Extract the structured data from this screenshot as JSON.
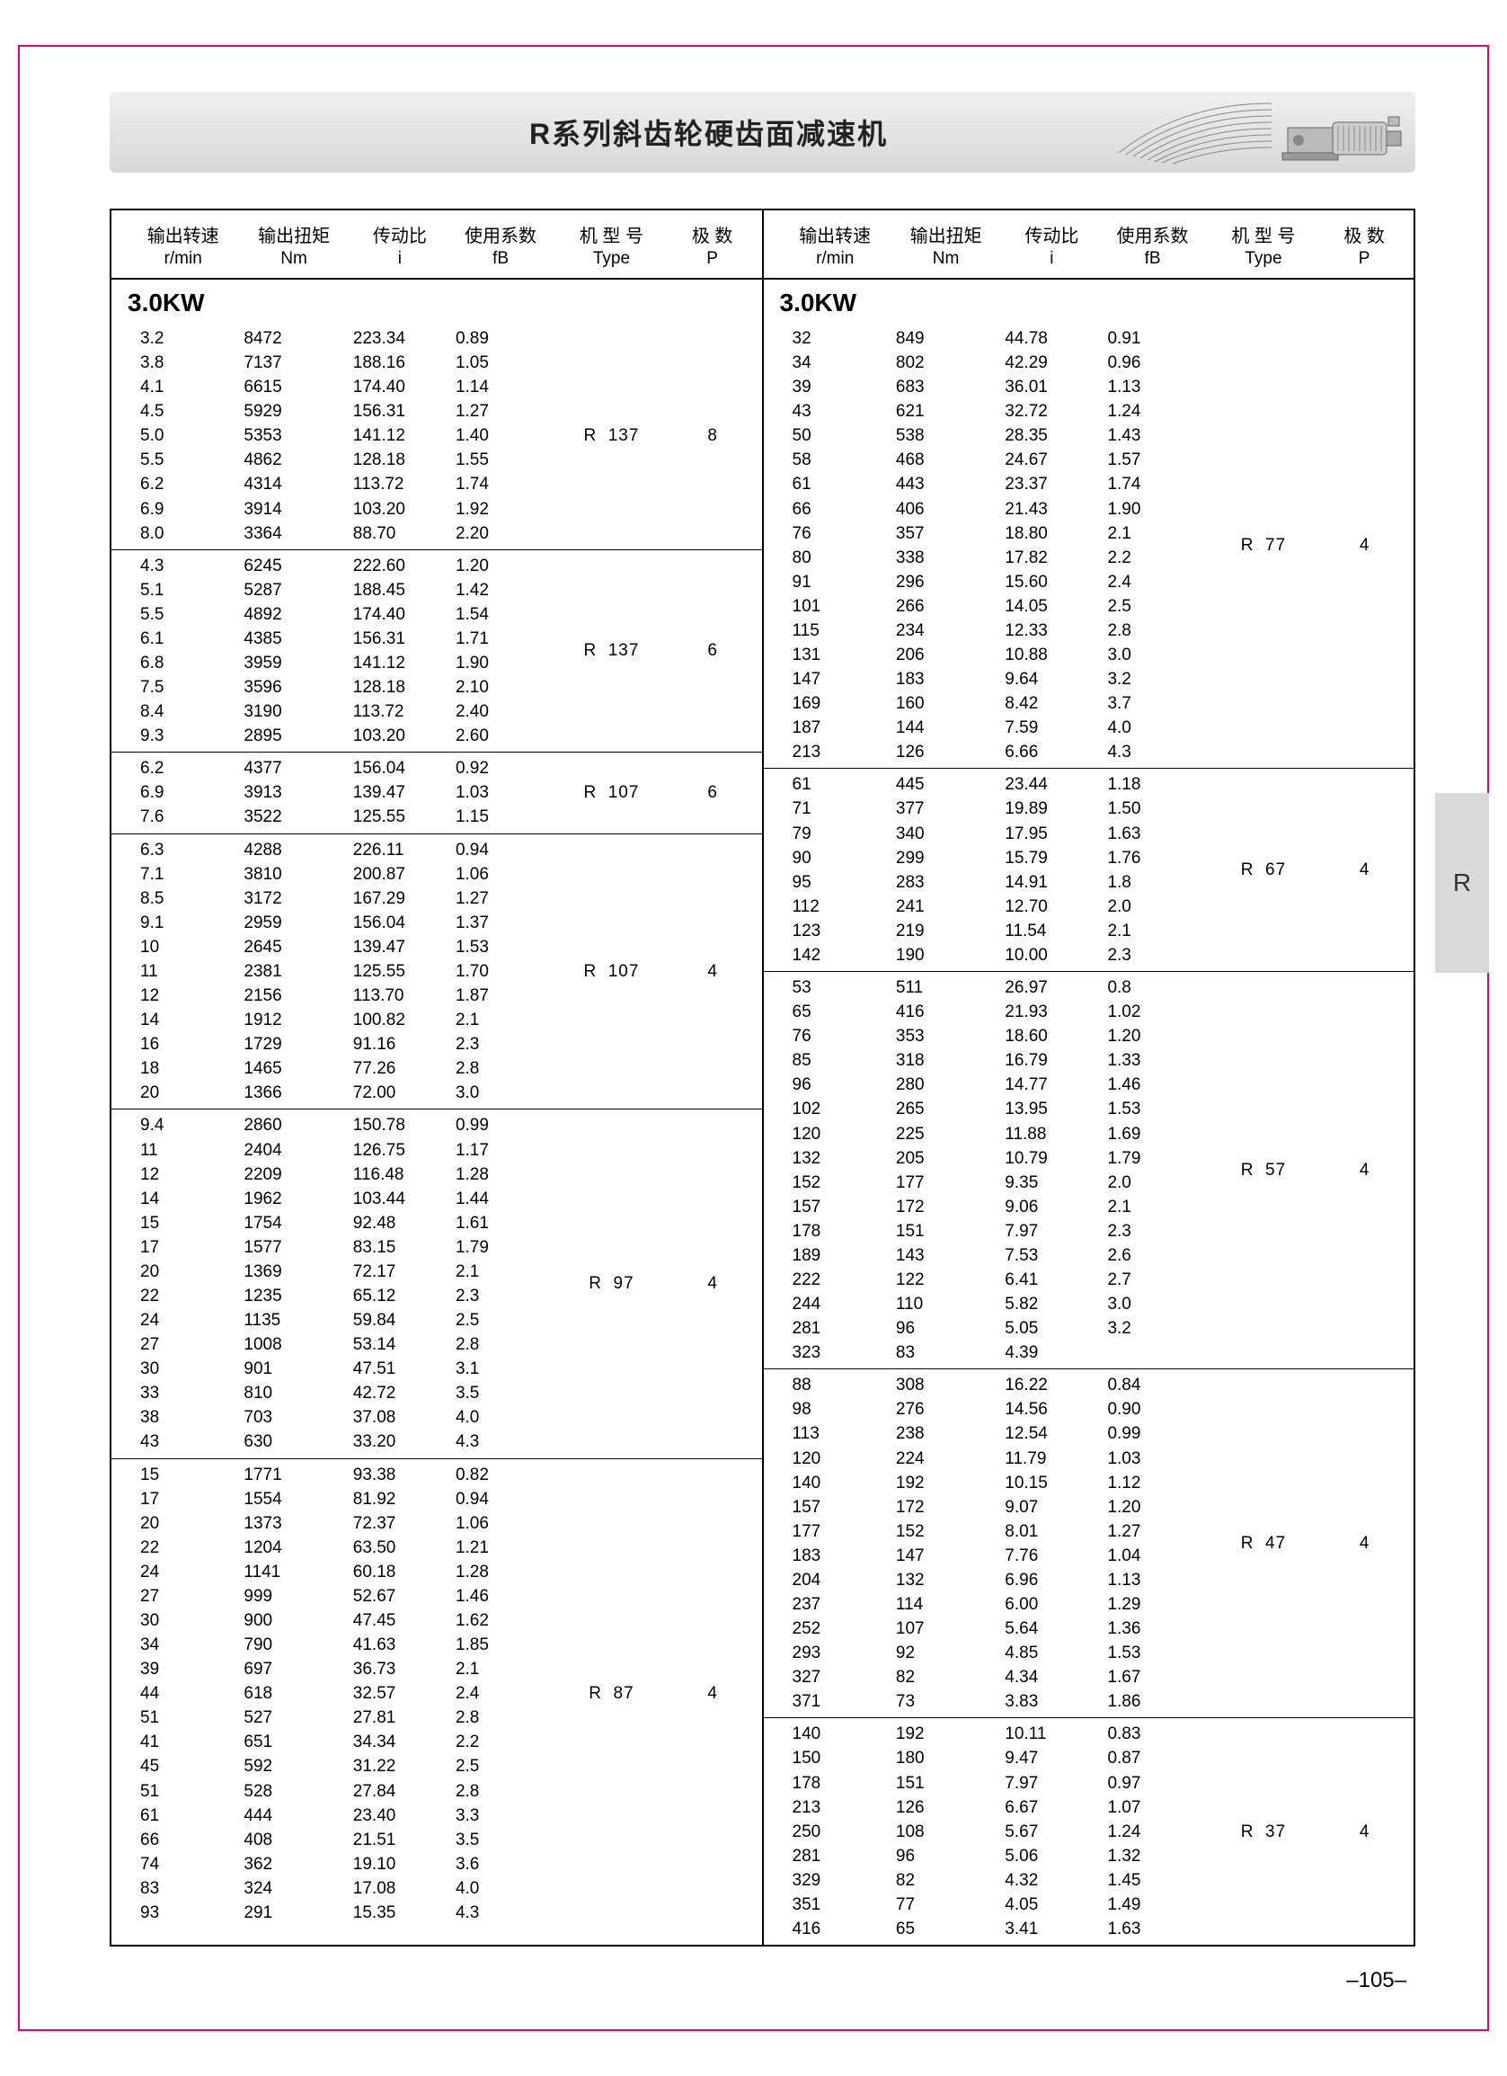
{
  "title": "R系列斜齿轮硬齿面减速机",
  "side_tab": "R",
  "page_number": "–105–",
  "power_label": "3.0KW",
  "headers": {
    "h1": "输出转速",
    "s1": "r/min",
    "h2": "输出扭矩",
    "s2": "Nm",
    "h3": "传动比",
    "s3": "i",
    "h4": "使用系数",
    "s4": "fB",
    "h5": "机 型 号",
    "s5": "Type",
    "h6": "极  数",
    "s6": "P"
  },
  "left": [
    {
      "type": "R  137",
      "p": "8",
      "rows": [
        [
          "3.2",
          "8472",
          "223.34",
          "0.89"
        ],
        [
          "3.8",
          "7137",
          "188.16",
          "1.05"
        ],
        [
          "4.1",
          "6615",
          "174.40",
          "1.14"
        ],
        [
          "4.5",
          "5929",
          "156.31",
          "1.27"
        ],
        [
          "5.0",
          "5353",
          "141.12",
          "1.40"
        ],
        [
          "5.5",
          "4862",
          "128.18",
          "1.55"
        ],
        [
          "6.2",
          "4314",
          "113.72",
          "1.74"
        ],
        [
          "6.9",
          "3914",
          "103.20",
          "1.92"
        ],
        [
          "8.0",
          "3364",
          "88.70",
          "2.20"
        ]
      ]
    },
    {
      "type": "R  137",
      "p": "6",
      "rows": [
        [
          "4.3",
          "6245",
          "222.60",
          "1.20"
        ],
        [
          "5.1",
          "5287",
          "188.45",
          "1.42"
        ],
        [
          "5.5",
          "4892",
          "174.40",
          "1.54"
        ],
        [
          "6.1",
          "4385",
          "156.31",
          "1.71"
        ],
        [
          "6.8",
          "3959",
          "141.12",
          "1.90"
        ],
        [
          "7.5",
          "3596",
          "128.18",
          "2.10"
        ],
        [
          "8.4",
          "3190",
          "113.72",
          "2.40"
        ],
        [
          "9.3",
          "2895",
          "103.20",
          "2.60"
        ]
      ]
    },
    {
      "type": "R  107",
      "p": "6",
      "rows": [
        [
          "6.2",
          "4377",
          "156.04",
          "0.92"
        ],
        [
          "6.9",
          "3913",
          "139.47",
          "1.03"
        ],
        [
          "7.6",
          "3522",
          "125.55",
          "1.15"
        ]
      ]
    },
    {
      "type": "R  107",
      "p": "4",
      "rows": [
        [
          "6.3",
          "4288",
          "226.11",
          "0.94"
        ],
        [
          "7.1",
          "3810",
          "200.87",
          "1.06"
        ],
        [
          "8.5",
          "3172",
          "167.29",
          "1.27"
        ],
        [
          "9.1",
          "2959",
          "156.04",
          "1.37"
        ],
        [
          "10",
          "2645",
          "139.47",
          "1.53"
        ],
        [
          "11",
          "2381",
          "125.55",
          "1.70"
        ],
        [
          "12",
          "2156",
          "113.70",
          "1.87"
        ],
        [
          "14",
          "1912",
          "100.82",
          "2.1"
        ],
        [
          "16",
          "1729",
          "91.16",
          "2.3"
        ],
        [
          "18",
          "1465",
          "77.26",
          "2.8"
        ],
        [
          "20",
          "1366",
          "72.00",
          "3.0"
        ]
      ]
    },
    {
      "type": "R  97",
      "p": "4",
      "rows": [
        [
          "9.4",
          "2860",
          "150.78",
          "0.99"
        ],
        [
          "11",
          "2404",
          "126.75",
          "1.17"
        ],
        [
          "12",
          "2209",
          "116.48",
          "1.28"
        ],
        [
          "14",
          "1962",
          "103.44",
          "1.44"
        ],
        [
          "15",
          "1754",
          "92.48",
          "1.61"
        ],
        [
          "17",
          "1577",
          "83.15",
          "1.79"
        ],
        [
          "20",
          "1369",
          "72.17",
          "2.1"
        ],
        [
          "22",
          "1235",
          "65.12",
          "2.3"
        ],
        [
          "24",
          "1135",
          "59.84",
          "2.5"
        ],
        [
          "27",
          "1008",
          "53.14",
          "2.8"
        ],
        [
          "30",
          "901",
          "47.51",
          "3.1"
        ],
        [
          "33",
          "810",
          "42.72",
          "3.5"
        ],
        [
          "38",
          "703",
          "37.08",
          "4.0"
        ],
        [
          "43",
          "630",
          "33.20",
          "4.3"
        ]
      ]
    },
    {
      "type": "R  87",
      "p": "4",
      "rows": [
        [
          "15",
          "1771",
          "93.38",
          "0.82"
        ],
        [
          "17",
          "1554",
          "81.92",
          "0.94"
        ],
        [
          "20",
          "1373",
          "72.37",
          "1.06"
        ],
        [
          "22",
          "1204",
          "63.50",
          "1.21"
        ],
        [
          "24",
          "1141",
          "60.18",
          "1.28"
        ],
        [
          "27",
          "999",
          "52.67",
          "1.46"
        ],
        [
          "30",
          "900",
          "47.45",
          "1.62"
        ],
        [
          "34",
          "790",
          "41.63",
          "1.85"
        ],
        [
          "39",
          "697",
          "36.73",
          "2.1"
        ],
        [
          "44",
          "618",
          "32.57",
          "2.4"
        ],
        [
          "51",
          "527",
          "27.81",
          "2.8"
        ],
        [
          "41",
          "651",
          "34.34",
          "2.2"
        ],
        [
          "45",
          "592",
          "31.22",
          "2.5"
        ],
        [
          "51",
          "528",
          "27.84",
          "2.8"
        ],
        [
          "61",
          "444",
          "23.40",
          "3.3"
        ],
        [
          "66",
          "408",
          "21.51",
          "3.5"
        ],
        [
          "74",
          "362",
          "19.10",
          "3.6"
        ],
        [
          "83",
          "324",
          "17.08",
          "4.0"
        ],
        [
          "93",
          "291",
          "15.35",
          "4.3"
        ]
      ]
    }
  ],
  "right": [
    {
      "type": "R  77",
      "p": "4",
      "rows": [
        [
          "32",
          "849",
          "44.78",
          "0.91"
        ],
        [
          "34",
          "802",
          "42.29",
          "0.96"
        ],
        [
          "39",
          "683",
          "36.01",
          "1.13"
        ],
        [
          "43",
          "621",
          "32.72",
          "1.24"
        ],
        [
          "50",
          "538",
          "28.35",
          "1.43"
        ],
        [
          "58",
          "468",
          "24.67",
          "1.57"
        ],
        [
          "61",
          "443",
          "23.37",
          "1.74"
        ],
        [
          "66",
          "406",
          "21.43",
          "1.90"
        ],
        [
          "76",
          "357",
          "18.80",
          "2.1"
        ],
        [
          "80",
          "338",
          "17.82",
          "2.2"
        ],
        [
          "91",
          "296",
          "15.60",
          "2.4"
        ],
        [
          "101",
          "266",
          "14.05",
          "2.5"
        ],
        [
          "115",
          "234",
          "12.33",
          "2.8"
        ],
        [
          "131",
          "206",
          "10.88",
          "3.0"
        ],
        [
          "147",
          "183",
          "9.64",
          "3.2"
        ],
        [
          "169",
          "160",
          "8.42",
          "3.7"
        ],
        [
          "187",
          "144",
          "7.59",
          "4.0"
        ],
        [
          "213",
          "126",
          "6.66",
          "4.3"
        ]
      ]
    },
    {
      "type": "R  67",
      "p": "4",
      "rows": [
        [
          "61",
          "445",
          "23.44",
          "1.18"
        ],
        [
          "71",
          "377",
          "19.89",
          "1.50"
        ],
        [
          "79",
          "340",
          "17.95",
          "1.63"
        ],
        [
          "90",
          "299",
          "15.79",
          "1.76"
        ],
        [
          "95",
          "283",
          "14.91",
          "1.8"
        ],
        [
          "112",
          "241",
          "12.70",
          "2.0"
        ],
        [
          "123",
          "219",
          "11.54",
          "2.1"
        ],
        [
          "142",
          "190",
          "10.00",
          "2.3"
        ]
      ]
    },
    {
      "type": "R  57",
      "p": "4",
      "rows": [
        [
          "53",
          "511",
          "26.97",
          "0.8"
        ],
        [
          "65",
          "416",
          "21.93",
          "1.02"
        ],
        [
          "76",
          "353",
          "18.60",
          "1.20"
        ],
        [
          "85",
          "318",
          "16.79",
          "1.33"
        ],
        [
          "96",
          "280",
          "14.77",
          "1.46"
        ],
        [
          "102",
          "265",
          "13.95",
          "1.53"
        ],
        [
          "120",
          "225",
          "11.88",
          "1.69"
        ],
        [
          "132",
          "205",
          "10.79",
          "1.79"
        ],
        [
          "152",
          "177",
          "9.35",
          "2.0"
        ],
        [
          "157",
          "172",
          "9.06",
          "2.1"
        ],
        [
          "178",
          "151",
          "7.97",
          "2.3"
        ],
        [
          "189",
          "143",
          "7.53",
          "2.6"
        ],
        [
          "222",
          "122",
          "6.41",
          "2.7"
        ],
        [
          "244",
          "110",
          "5.82",
          "3.0"
        ],
        [
          "281",
          "96",
          "5.05",
          "3.2"
        ],
        [
          "323",
          "83",
          "4.39",
          ""
        ]
      ]
    },
    {
      "type": "R  47",
      "p": "4",
      "rows": [
        [
          "88",
          "308",
          "16.22",
          "0.84"
        ],
        [
          "98",
          "276",
          "14.56",
          "0.90"
        ],
        [
          "113",
          "238",
          "12.54",
          "0.99"
        ],
        [
          "120",
          "224",
          "11.79",
          "1.03"
        ],
        [
          "140",
          "192",
          "10.15",
          "1.12"
        ],
        [
          "157",
          "172",
          "9.07",
          "1.20"
        ],
        [
          "177",
          "152",
          "8.01",
          "1.27"
        ],
        [
          "183",
          "147",
          "7.76",
          "1.04"
        ],
        [
          "204",
          "132",
          "6.96",
          "1.13"
        ],
        [
          "237",
          "114",
          "6.00",
          "1.29"
        ],
        [
          "252",
          "107",
          "5.64",
          "1.36"
        ],
        [
          "293",
          "92",
          "4.85",
          "1.53"
        ],
        [
          "327",
          "82",
          "4.34",
          "1.67"
        ],
        [
          "371",
          "73",
          "3.83",
          "1.86"
        ]
      ]
    },
    {
      "type": "R  37",
      "p": "4",
      "rows": [
        [
          "140",
          "192",
          "10.11",
          "0.83"
        ],
        [
          "150",
          "180",
          "9.47",
          "0.87"
        ],
        [
          "178",
          "151",
          "7.97",
          "0.97"
        ],
        [
          "213",
          "126",
          "6.67",
          "1.07"
        ],
        [
          "250",
          "108",
          "5.67",
          "1.24"
        ],
        [
          "281",
          "96",
          "5.06",
          "1.32"
        ],
        [
          "329",
          "82",
          "4.32",
          "1.45"
        ],
        [
          "351",
          "77",
          "4.05",
          "1.49"
        ],
        [
          "416",
          "65",
          "3.41",
          "1.63"
        ]
      ]
    }
  ]
}
